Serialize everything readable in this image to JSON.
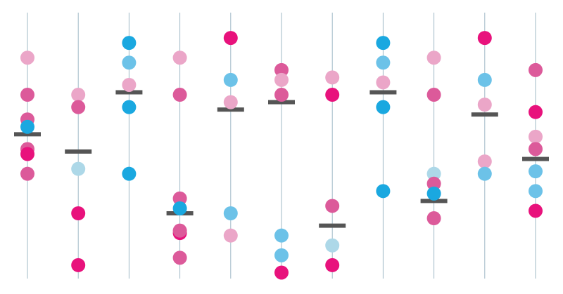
{
  "chart_data": {
    "type": "scatter",
    "title": "",
    "xlabel": "",
    "ylabel": "",
    "ylim": [
      0,
      100
    ],
    "grid": false,
    "legend": "none",
    "colors": {
      "axis": "#9fb8c6",
      "mean": "#555555",
      "magenta": "#e8127c",
      "dark_pink": "#dc5a9a",
      "light_pink": "#eba6c8",
      "blue": "#1aa8e0",
      "light_blue": "#6cc2e8",
      "pale_blue": "#add8e8"
    },
    "columns": [
      {
        "mean": 57,
        "points": [
          {
            "y": 88,
            "color": "light_pink"
          },
          {
            "y": 73,
            "color": "dark_pink"
          },
          {
            "y": 63,
            "color": "dark_pink"
          },
          {
            "y": 60,
            "color": "blue"
          },
          {
            "y": 51,
            "color": "dark_pink"
          },
          {
            "y": 49,
            "color": "magenta"
          },
          {
            "y": 41,
            "color": "dark_pink"
          }
        ]
      },
      {
        "mean": 50,
        "points": [
          {
            "y": 73,
            "color": "light_pink"
          },
          {
            "y": 68,
            "color": "dark_pink"
          },
          {
            "y": 43,
            "color": "pale_blue"
          },
          {
            "y": 25,
            "color": "magenta"
          },
          {
            "y": 4,
            "color": "magenta"
          }
        ]
      },
      {
        "mean": 74,
        "points": [
          {
            "y": 94,
            "color": "blue"
          },
          {
            "y": 86,
            "color": "light_blue"
          },
          {
            "y": 77,
            "color": "light_pink"
          },
          {
            "y": 68,
            "color": "blue"
          },
          {
            "y": 41,
            "color": "blue"
          }
        ]
      },
      {
        "mean": 25,
        "points": [
          {
            "y": 88,
            "color": "light_pink"
          },
          {
            "y": 73,
            "color": "dark_pink"
          },
          {
            "y": 31,
            "color": "dark_pink"
          },
          {
            "y": 27,
            "color": "blue"
          },
          {
            "y": 17,
            "color": "magenta"
          },
          {
            "y": 18,
            "color": "dark_pink"
          },
          {
            "y": 7,
            "color": "dark_pink"
          }
        ]
      },
      {
        "mean": 67,
        "points": [
          {
            "y": 96,
            "color": "magenta"
          },
          {
            "y": 79,
            "color": "light_blue"
          },
          {
            "y": 70,
            "color": "light_pink"
          },
          {
            "y": 25,
            "color": "light_blue"
          },
          {
            "y": 16,
            "color": "light_pink"
          }
        ]
      },
      {
        "mean": 70,
        "points": [
          {
            "y": 83,
            "color": "dark_pink"
          },
          {
            "y": 79,
            "color": "light_pink"
          },
          {
            "y": 73,
            "color": "dark_pink"
          },
          {
            "y": 16,
            "color": "light_blue"
          },
          {
            "y": 8,
            "color": "light_blue"
          },
          {
            "y": 1,
            "color": "magenta"
          }
        ]
      },
      {
        "mean": 20,
        "points": [
          {
            "y": 80,
            "color": "light_pink"
          },
          {
            "y": 73,
            "color": "magenta"
          },
          {
            "y": 28,
            "color": "dark_pink"
          },
          {
            "y": 12,
            "color": "pale_blue"
          },
          {
            "y": 4,
            "color": "magenta"
          }
        ]
      },
      {
        "mean": 74,
        "points": [
          {
            "y": 94,
            "color": "blue"
          },
          {
            "y": 86,
            "color": "light_blue"
          },
          {
            "y": 78,
            "color": "light_pink"
          },
          {
            "y": 68,
            "color": "blue"
          },
          {
            "y": 34,
            "color": "blue"
          }
        ]
      },
      {
        "mean": 30,
        "points": [
          {
            "y": 88,
            "color": "light_pink"
          },
          {
            "y": 73,
            "color": "dark_pink"
          },
          {
            "y": 41,
            "color": "pale_blue"
          },
          {
            "y": 37,
            "color": "dark_pink"
          },
          {
            "y": 33,
            "color": "blue"
          },
          {
            "y": 23,
            "color": "dark_pink"
          }
        ]
      },
      {
        "mean": 65,
        "points": [
          {
            "y": 96,
            "color": "magenta"
          },
          {
            "y": 79,
            "color": "light_blue"
          },
          {
            "y": 69,
            "color": "light_pink"
          },
          {
            "y": 46,
            "color": "light_pink"
          },
          {
            "y": 41,
            "color": "light_blue"
          }
        ]
      },
      {
        "mean": 47,
        "points": [
          {
            "y": 83,
            "color": "dark_pink"
          },
          {
            "y": 66,
            "color": "magenta"
          },
          {
            "y": 56,
            "color": "light_pink"
          },
          {
            "y": 51,
            "color": "dark_pink"
          },
          {
            "y": 42,
            "color": "light_blue"
          },
          {
            "y": 34,
            "color": "light_blue"
          },
          {
            "y": 26,
            "color": "magenta"
          }
        ]
      }
    ]
  }
}
